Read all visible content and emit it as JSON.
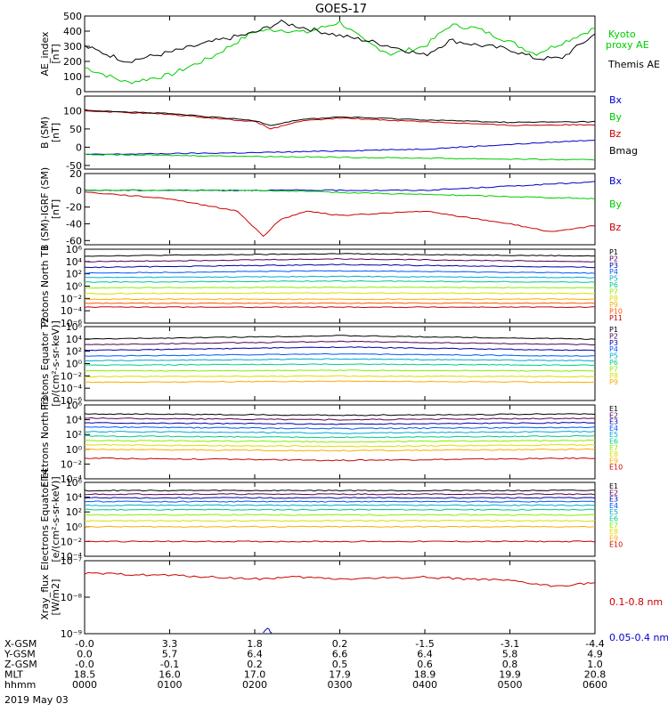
{
  "title": "GOES-17",
  "footer": {
    "rows": [
      {
        "label": "X-GSM",
        "values": [
          "-0.0",
          "3.3",
          "1.8",
          "0.2",
          "-1.5",
          "-3.1",
          "-4.4"
        ]
      },
      {
        "label": "Y-GSM",
        "values": [
          "0.0",
          "5.7",
          "6.4",
          "6.6",
          "6.4",
          "5.8",
          "4.9"
        ]
      },
      {
        "label": "Z-GSM",
        "values": [
          "-0.0",
          "-0.1",
          "0.2",
          "0.5",
          "0.6",
          "0.8",
          "1.0"
        ]
      },
      {
        "label": "MLT",
        "values": [
          "18.5",
          "16.0",
          "17.0",
          "17.9",
          "18.9",
          "19.9",
          "20.8"
        ]
      },
      {
        "label": "hhmm",
        "values": [
          "0000",
          "0100",
          "0200",
          "0300",
          "0400",
          "0500",
          "0600"
        ]
      }
    ],
    "date": "2019 May 03"
  },
  "chart_data": [
    {
      "type": "line",
      "ylabel": "AE_index [nT]",
      "ylim": [
        0,
        500
      ],
      "yticks": [
        "0",
        "100",
        "200",
        "300",
        "400",
        "500"
      ],
      "series": [
        {
          "name": "Kyoto proxy AE",
          "color": "#00cc00",
          "x": [
            0,
            0.5,
            1.0,
            1.5,
            2.0,
            2.3,
            2.6,
            3.0,
            3.3,
            3.6,
            4.0,
            4.3,
            4.6,
            5.0,
            5.3,
            5.6,
            6.0
          ],
          "y": [
            160,
            60,
            110,
            230,
            400,
            410,
            390,
            460,
            330,
            250,
            300,
            440,
            420,
            330,
            250,
            320,
            420
          ]
        },
        {
          "name": "Themis AE",
          "color": "#000000",
          "x": [
            0,
            0.5,
            1.0,
            1.5,
            2.0,
            2.3,
            2.6,
            3.0,
            3.3,
            3.6,
            4.0,
            4.3,
            4.6,
            5.0,
            5.3,
            5.6,
            6.0
          ],
          "y": [
            300,
            200,
            260,
            330,
            390,
            460,
            420,
            370,
            340,
            300,
            240,
            340,
            310,
            280,
            220,
            220,
            380
          ]
        }
      ]
    },
    {
      "type": "line",
      "ylabel": "B (SM) [nT]",
      "ylim": [
        -60,
        140
      ],
      "yticks": [
        "-50",
        "0",
        "50",
        "100"
      ],
      "series": [
        {
          "name": "Bx",
          "color": "#0000cc",
          "x": [
            0,
            2,
            4,
            6
          ],
          "y": [
            -20,
            -15,
            -5,
            20
          ]
        },
        {
          "name": "By",
          "color": "#00cc00",
          "x": [
            0,
            2,
            4,
            6
          ],
          "y": [
            -20,
            -25,
            -30,
            -35
          ]
        },
        {
          "name": "Bz",
          "color": "#cc0000",
          "x": [
            0,
            1,
            2,
            2.2,
            2.5,
            3,
            4,
            5,
            6
          ],
          "y": [
            100,
            90,
            70,
            50,
            70,
            80,
            70,
            60,
            62
          ]
        },
        {
          "name": "Bmag",
          "color": "#000000",
          "x": [
            0,
            1,
            2,
            2.2,
            2.5,
            3,
            4,
            5,
            6
          ],
          "y": [
            102,
            92,
            73,
            60,
            75,
            83,
            75,
            68,
            70
          ]
        }
      ]
    },
    {
      "type": "line",
      "ylabel": "B (SM)-IGRF (SM) [nT]",
      "ylim": [
        -65,
        20
      ],
      "yticks": [
        "-60",
        "-40",
        "-20",
        "0",
        "20"
      ],
      "series": [
        {
          "name": "Bx",
          "color": "#0000cc",
          "x": [
            0,
            2,
            4,
            6
          ],
          "y": [
            0,
            0,
            0,
            10
          ]
        },
        {
          "name": "By",
          "color": "#00cc00",
          "x": [
            0,
            2,
            4,
            6
          ],
          "y": [
            0,
            0,
            -5,
            -10
          ]
        },
        {
          "name": "Bz",
          "color": "#cc0000",
          "x": [
            0,
            1,
            1.8,
            2.1,
            2.3,
            2.6,
            3,
            4,
            5,
            5.5,
            6
          ],
          "y": [
            -2,
            -10,
            -25,
            -55,
            -35,
            -25,
            -30,
            -25,
            -40,
            -50,
            -42
          ]
        }
      ]
    },
    {
      "type": "line",
      "ylabel": "Protons North T1",
      "yscale": "log",
      "ylim": [
        -7,
        6
      ],
      "yticks": [
        "10⁶",
        "10⁴",
        "10²",
        "10⁰",
        "10⁻²",
        "10⁻⁴",
        "10⁻⁶"
      ],
      "series": [
        {
          "name": "P1",
          "color": "#000000",
          "y": [
            4.8,
            5.2,
            4.8
          ]
        },
        {
          "name": "P2",
          "color": "#550055",
          "y": [
            3.8,
            4.3,
            3.8
          ]
        },
        {
          "name": "P3",
          "color": "#0000aa",
          "y": [
            2.8,
            3.3,
            2.8
          ]
        },
        {
          "name": "P4",
          "color": "#0055ff",
          "y": [
            1.8,
            2.2,
            1.8
          ]
        },
        {
          "name": "P5",
          "color": "#00aacc",
          "y": [
            1.0,
            1.2,
            1.0
          ]
        },
        {
          "name": "P6",
          "color": "#00cc88",
          "y": [
            0.2,
            0.4,
            0.2
          ]
        },
        {
          "name": "P7",
          "color": "#88ee00",
          "y": [
            -0.8,
            -0.7,
            -0.8
          ]
        },
        {
          "name": "P8",
          "color": "#dddd00",
          "y": [
            -1.8,
            -1.7,
            -1.8
          ]
        },
        {
          "name": "P9",
          "color": "#ffaa00",
          "y": [
            -2.8,
            -2.8,
            -2.8
          ]
        },
        {
          "name": "P10",
          "color": "#ff5500",
          "y": [
            -3.5,
            -3.5,
            -3.5
          ]
        },
        {
          "name": "P11",
          "color": "#cc0000",
          "y": [
            -4.2,
            -4.2,
            -4.2
          ]
        }
      ]
    },
    {
      "type": "line",
      "ylabel": "Protons Equator T2 [p/(cm²-s-sr-keV)]",
      "yscale": "log",
      "ylim": [
        -7,
        6
      ],
      "yticks": [
        "10⁶",
        "10⁴",
        "10²",
        "10⁰",
        "10⁻²",
        "10⁻⁴",
        "10⁻⁶"
      ],
      "series": [
        {
          "name": "P1",
          "color": "#000000",
          "y": [
            3.8,
            4.4,
            3.8
          ]
        },
        {
          "name": "P2",
          "color": "#550055",
          "y": [
            2.8,
            3.4,
            2.8
          ]
        },
        {
          "name": "P3",
          "color": "#0000aa",
          "y": [
            1.8,
            2.4,
            1.8
          ]
        },
        {
          "name": "P4",
          "color": "#0055ff",
          "y": [
            0.8,
            1.2,
            0.8
          ]
        },
        {
          "name": "P5",
          "color": "#00aacc",
          "y": [
            0.0,
            0.3,
            0.0
          ]
        },
        {
          "name": "P6",
          "color": "#00cc88",
          "y": [
            -0.8,
            -0.6,
            -0.8
          ]
        },
        {
          "name": "P7",
          "color": "#88ee00",
          "y": [
            -1.8,
            -1.7,
            -1.8
          ]
        },
        {
          "name": "P8",
          "color": "#dddd00",
          "y": [
            -2.8,
            -2.7,
            -2.8
          ]
        },
        {
          "name": "P9",
          "color": "#ffaa00",
          "y": [
            -3.8,
            -3.6,
            -3.8
          ]
        }
      ]
    },
    {
      "type": "line",
      "ylabel": "Electrons North T3",
      "yscale": "log",
      "ylim": [
        -4,
        6
      ],
      "yticks": [
        "10⁶",
        "10⁴",
        "10²",
        "10⁰",
        "10⁻²",
        "10⁻⁴"
      ],
      "series": [
        {
          "name": "E1",
          "color": "#000000",
          "y": [
            4.8,
            4.6,
            4.8
          ]
        },
        {
          "name": "E2",
          "color": "#550055",
          "y": [
            4.2,
            4.0,
            4.2
          ]
        },
        {
          "name": "E3",
          "color": "#0000aa",
          "y": [
            3.6,
            3.4,
            3.6
          ]
        },
        {
          "name": "E4",
          "color": "#0055ff",
          "y": [
            3.0,
            2.8,
            3.0
          ]
        },
        {
          "name": "E5",
          "color": "#00aacc",
          "y": [
            2.4,
            2.2,
            2.4
          ]
        },
        {
          "name": "E6",
          "color": "#00cc88",
          "y": [
            1.8,
            1.6,
            1.8
          ]
        },
        {
          "name": "E7",
          "color": "#88ee00",
          "y": [
            1.2,
            1.0,
            1.2
          ]
        },
        {
          "name": "E8",
          "color": "#dddd00",
          "y": [
            0.6,
            0.4,
            0.6
          ]
        },
        {
          "name": "E9",
          "color": "#ffaa00",
          "y": [
            0.0,
            -0.2,
            0.0
          ]
        },
        {
          "name": "E10",
          "color": "#cc0000",
          "y": [
            -1.2,
            -1.5,
            -1.2
          ]
        }
      ]
    },
    {
      "type": "line",
      "ylabel": "Electrons Equator T4 [e/(cm²-s-sr-keV)]",
      "yscale": "log",
      "ylim": [
        -4,
        6
      ],
      "yticks": [
        "10⁶",
        "10⁴",
        "10²",
        "10⁰",
        "10⁻²",
        "10⁻⁴"
      ],
      "series": [
        {
          "name": "E1",
          "color": "#000000",
          "y": [
            4.9,
            4.9,
            4.9
          ]
        },
        {
          "name": "E2",
          "color": "#550055",
          "y": [
            4.4,
            4.4,
            4.4
          ]
        },
        {
          "name": "E3",
          "color": "#0000aa",
          "y": [
            3.9,
            3.9,
            3.9
          ]
        },
        {
          "name": "E4",
          "color": "#0055ff",
          "y": [
            3.4,
            3.4,
            3.4
          ]
        },
        {
          "name": "E5",
          "color": "#00aacc",
          "y": [
            2.9,
            2.9,
            2.9
          ]
        },
        {
          "name": "E6",
          "color": "#00cc88",
          "y": [
            2.3,
            2.3,
            2.3
          ]
        },
        {
          "name": "E7",
          "color": "#88ee00",
          "y": [
            1.6,
            1.6,
            1.6
          ]
        },
        {
          "name": "E8",
          "color": "#dddd00",
          "y": [
            0.8,
            0.8,
            0.8
          ]
        },
        {
          "name": "E9",
          "color": "#ffaa00",
          "y": [
            0.0,
            0.0,
            0.0
          ]
        },
        {
          "name": "E10",
          "color": "#cc0000",
          "y": [
            -2.0,
            -2.0,
            -2.0
          ]
        }
      ]
    },
    {
      "type": "line",
      "ylabel": "Xray_flux [W/m2]",
      "yscale": "log",
      "ylim": [
        -9,
        -7
      ],
      "yticks": [
        "10⁻⁷",
        "10⁻⁸",
        "10⁻⁹"
      ],
      "series": [
        {
          "name": "0.1-0.8 nm",
          "color": "#cc0000",
          "x": [
            0,
            1,
            2,
            2.5,
            3,
            4,
            5,
            5.5,
            6
          ],
          "y": [
            -7.35,
            -7.4,
            -7.5,
            -7.45,
            -7.5,
            -7.45,
            -7.55,
            -7.7,
            -7.6
          ]
        },
        {
          "name": "0.05-0.4 nm",
          "color": "#0000cc",
          "x": [
            2.1,
            2.15,
            2.2
          ],
          "y": [
            -9.0,
            -8.85,
            -9.0
          ]
        }
      ]
    }
  ]
}
